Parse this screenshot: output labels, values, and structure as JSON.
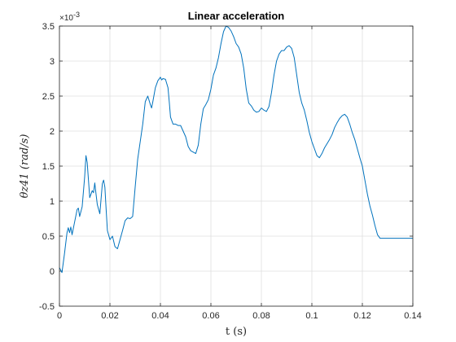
{
  "chart_data": {
    "type": "line",
    "title": "Linear acceleration",
    "xlabel": "t (s)",
    "ylabel": "θz41 (rad/s)",
    "y_exponent_label": "×10",
    "y_exponent_power": "-3",
    "xlim": [
      0,
      0.14
    ],
    "ylim": [
      -0.5,
      3.5
    ],
    "x_ticks": [
      0,
      0.02,
      0.04,
      0.06,
      0.08,
      0.1,
      0.12,
      0.14
    ],
    "x_tick_labels": [
      "0",
      "0.02",
      "0.04",
      "0.06",
      "0.08",
      "0.1",
      "0.12",
      "0.14"
    ],
    "y_ticks": [
      -0.5,
      0,
      0.5,
      1,
      1.5,
      2,
      2.5,
      3,
      3.5
    ],
    "y_tick_labels": [
      "-0.5",
      "0",
      "0.5",
      "1",
      "1.5",
      "2",
      "2.5",
      "3",
      "3.5"
    ],
    "grid": true,
    "line_color": "#0072bd",
    "series": [
      {
        "x": [
          0,
          0.001,
          0.002,
          0.003,
          0.0035,
          0.004,
          0.0045,
          0.005,
          0.006,
          0.007,
          0.0075,
          0.008,
          0.009,
          0.01,
          0.0105,
          0.011,
          0.0115,
          0.012,
          0.013,
          0.0135,
          0.014,
          0.0145,
          0.015,
          0.016,
          0.017,
          0.0175,
          0.018,
          0.0185,
          0.019,
          0.02,
          0.021,
          0.022,
          0.023,
          0.024,
          0.025,
          0.026,
          0.027,
          0.028,
          0.029,
          0.03,
          0.031,
          0.032,
          0.033,
          0.034,
          0.035,
          0.036,
          0.0365,
          0.037,
          0.038,
          0.039,
          0.04,
          0.0405,
          0.041,
          0.042,
          0.043,
          0.0435,
          0.044,
          0.045,
          0.046,
          0.047,
          0.048,
          0.05,
          0.051,
          0.052,
          0.053,
          0.054,
          0.055,
          0.056,
          0.057,
          0.058,
          0.059,
          0.06,
          0.061,
          0.062,
          0.063,
          0.064,
          0.065,
          0.066,
          0.067,
          0.068,
          0.069,
          0.07,
          0.071,
          0.072,
          0.073,
          0.074,
          0.075,
          0.076,
          0.077,
          0.078,
          0.079,
          0.08,
          0.081,
          0.082,
          0.083,
          0.084,
          0.085,
          0.086,
          0.087,
          0.088,
          0.089,
          0.09,
          0.091,
          0.092,
          0.093,
          0.094,
          0.095,
          0.096,
          0.097,
          0.098,
          0.099,
          0.1,
          0.101,
          0.102,
          0.103,
          0.104,
          0.105,
          0.106,
          0.107,
          0.108,
          0.109,
          0.11,
          0.111,
          0.112,
          0.113,
          0.114,
          0.115,
          0.116,
          0.117,
          0.118,
          0.119,
          0.12,
          0.121,
          0.122,
          0.123,
          0.124,
          0.125,
          0.126,
          0.127,
          0.128,
          0.129,
          0.13,
          0.131,
          0.132,
          0.133,
          0.134,
          0.135,
          0.136,
          0.137,
          0.138,
          0.139,
          0.14
        ],
        "y": [
          0.05,
          -0.02,
          0.25,
          0.55,
          0.62,
          0.55,
          0.63,
          0.52,
          0.7,
          0.88,
          0.9,
          0.78,
          0.92,
          1.35,
          1.65,
          1.55,
          1.3,
          1.05,
          1.15,
          1.12,
          1.26,
          1.1,
          0.95,
          0.82,
          1.25,
          1.3,
          1.2,
          0.88,
          0.58,
          0.45,
          0.5,
          0.35,
          0.32,
          0.45,
          0.58,
          0.72,
          0.76,
          0.75,
          0.78,
          1.2,
          1.6,
          1.85,
          2.1,
          2.42,
          2.5,
          2.38,
          2.33,
          2.42,
          2.62,
          2.72,
          2.77,
          2.73,
          2.75,
          2.74,
          2.62,
          2.42,
          2.2,
          2.1,
          2.1,
          2.08,
          2.08,
          1.92,
          1.78,
          1.72,
          1.7,
          1.68,
          1.8,
          2.1,
          2.32,
          2.38,
          2.45,
          2.6,
          2.8,
          2.9,
          3.05,
          3.25,
          3.42,
          3.5,
          3.48,
          3.43,
          3.35,
          3.25,
          3.2,
          3.1,
          2.9,
          2.6,
          2.4,
          2.36,
          2.3,
          2.27,
          2.28,
          2.33,
          2.3,
          2.28,
          2.35,
          2.55,
          2.8,
          3.0,
          3.1,
          3.15,
          3.15,
          3.2,
          3.22,
          3.18,
          3.05,
          2.8,
          2.55,
          2.4,
          2.3,
          2.15,
          1.98,
          1.85,
          1.75,
          1.65,
          1.62,
          1.68,
          1.76,
          1.82,
          1.88,
          1.95,
          2.05,
          2.12,
          2.18,
          2.22,
          2.24,
          2.2,
          2.1,
          1.98,
          1.88,
          1.75,
          1.62,
          1.5,
          1.3,
          1.1,
          0.93,
          0.8,
          0.65,
          0.52,
          0.47,
          0.47,
          0.47,
          0.47,
          0.47,
          0.47,
          0.47,
          0.47,
          0.47,
          0.47,
          0.47,
          0.47,
          0.47,
          0.47
        ]
      }
    ]
  }
}
